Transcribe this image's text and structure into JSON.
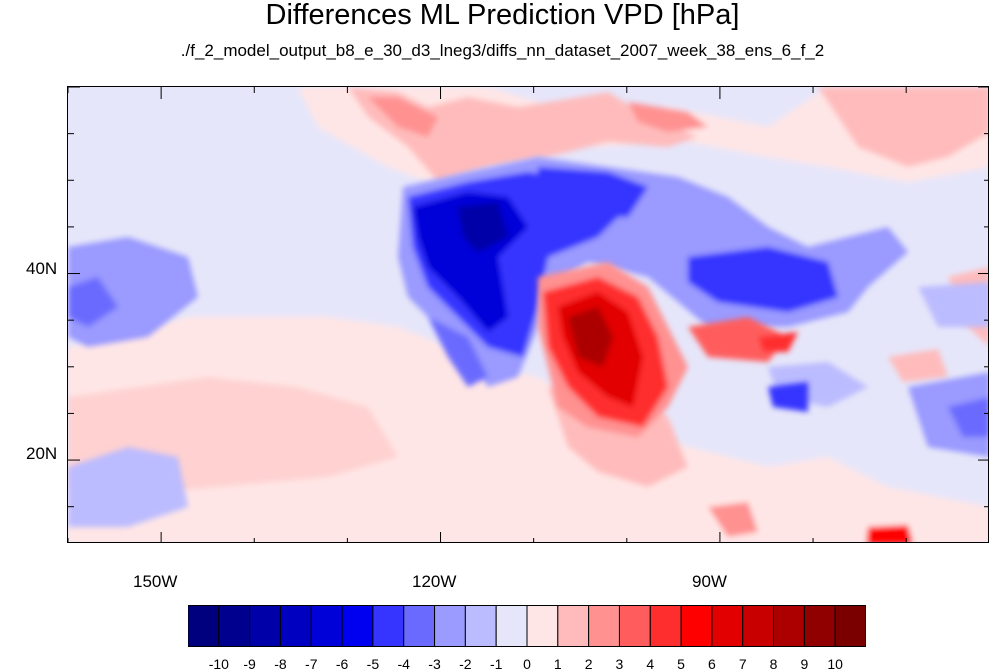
{
  "title": "Differences ML Prediction VPD [hPa]",
  "subtitle": "./f_2_model_output_b8_e_30_d3_lneg3/diffs_nn_dataset_2007_week_38_ens_6_f_2",
  "map": {
    "lon_range": [
      -160,
      -61
    ],
    "lat_range": [
      11,
      60
    ],
    "x_tick_labels": [
      "150W",
      "120W",
      "90W"
    ],
    "y_tick_labels": [
      "40N",
      "20N"
    ]
  },
  "colorbar": {
    "labels": [
      "-10",
      "-9",
      "-8",
      "-7",
      "-6",
      "-5",
      "-4",
      "-3",
      "-2",
      "-1",
      "0",
      "1",
      "2",
      "3",
      "4",
      "5",
      "6",
      "7",
      "8",
      "9",
      "10"
    ],
    "colors": [
      "#00007f",
      "#00008f",
      "#0000a8",
      "#0000c0",
      "#0000d8",
      "#0000f0",
      "#3535ff",
      "#6a6aff",
      "#9a9aff",
      "#bbbbff",
      "#e6e6fa",
      "#ffe6e6",
      "#ffbbbb",
      "#ff9191",
      "#ff5d5d",
      "#ff2e2e",
      "#ff0000",
      "#e20000",
      "#c80000",
      "#ac0000",
      "#900000",
      "#7a0000"
    ]
  },
  "colors": {
    "background": "#e6e6fa",
    "strong_negative": "#0000d8",
    "strong_positive": "#e00000"
  }
}
